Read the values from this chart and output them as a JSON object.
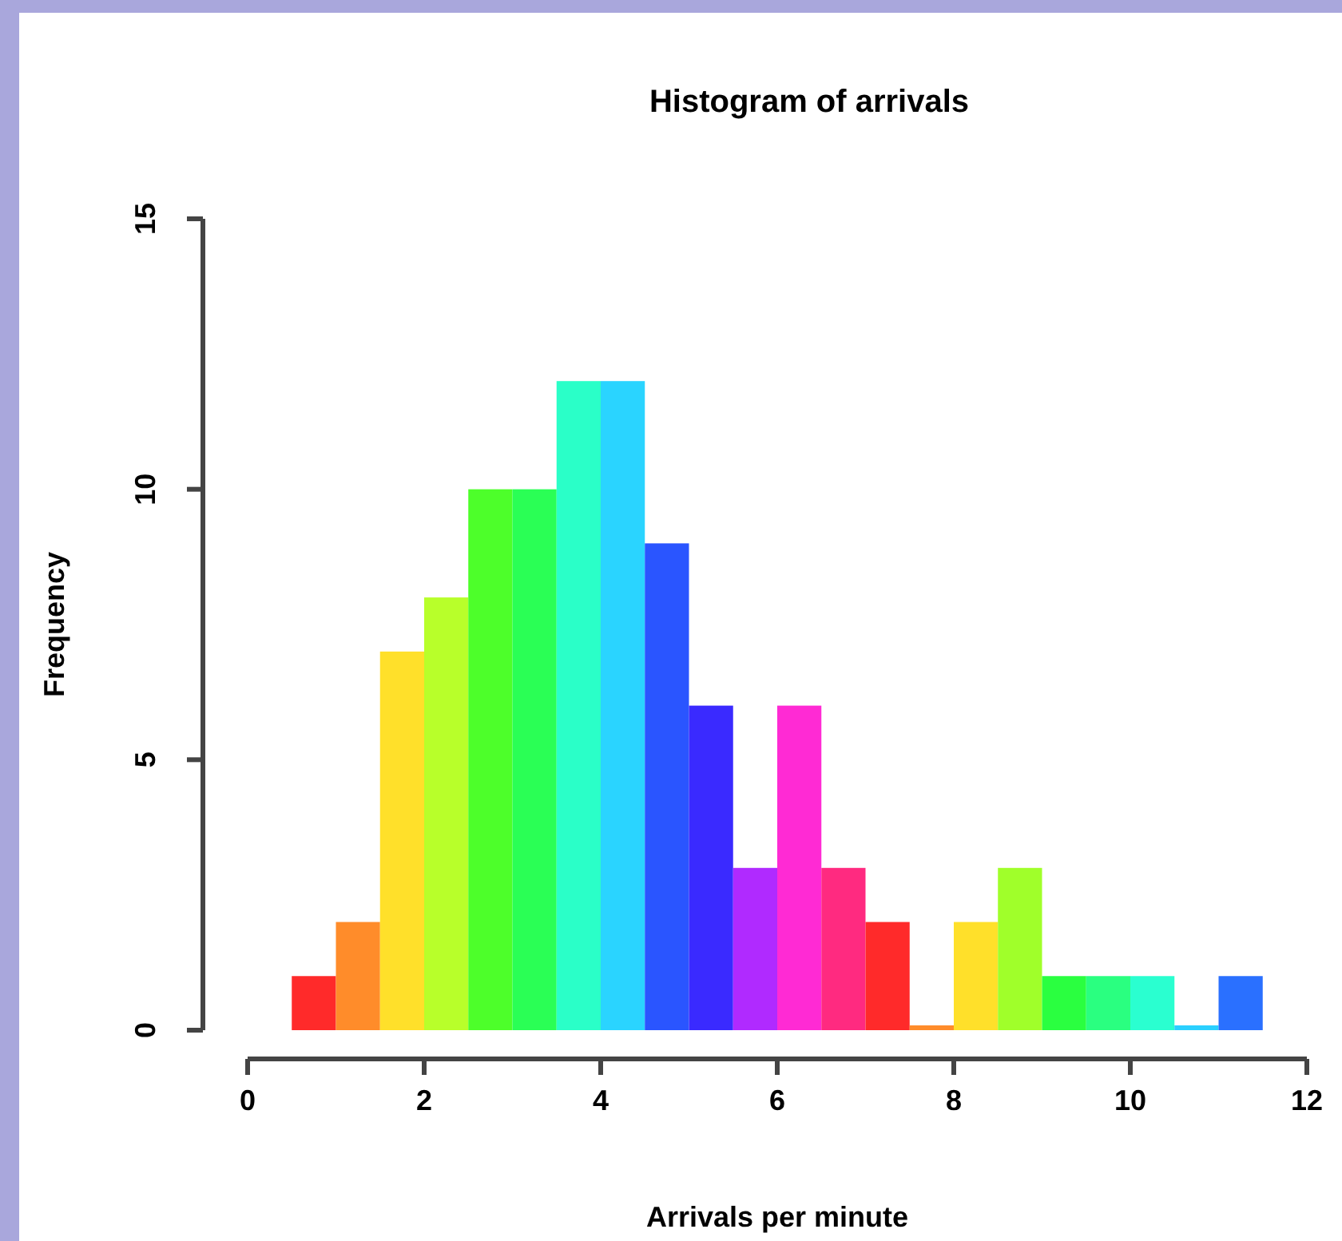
{
  "chart_data": {
    "type": "histogram",
    "title": "Histogram of arrivals",
    "xlabel": "Arrivals per minute",
    "ylabel": "Frequency",
    "bins": [
      0.5,
      1,
      1.5,
      2,
      2.5,
      3,
      3.5,
      4,
      4.5,
      5,
      5.5,
      6,
      6.5,
      7,
      7.5,
      8,
      8.5,
      9,
      9.5,
      10,
      10.5,
      11,
      11.5
    ],
    "values": [
      1,
      2,
      7,
      8,
      10,
      10,
      12,
      12,
      9,
      6,
      3,
      6,
      3,
      2,
      0,
      2,
      3,
      1,
      1,
      1,
      0,
      1
    ],
    "colors": [
      "#ff2a2a",
      "#ff8c2a",
      "#ffe02a",
      "#b8ff2a",
      "#4dff2a",
      "#2aff55",
      "#2affc8",
      "#2ad4ff",
      "#2a55ff",
      "#3a2aff",
      "#b02aff",
      "#ff2ad4",
      "#ff2a80",
      "#ff2a2a",
      "#ff8c2a",
      "#ffe02a",
      "#a0ff2a",
      "#2aff40",
      "#2aff80",
      "#2affd0",
      "#2ad0ff",
      "#2a70ff"
    ],
    "xlim": [
      0,
      12
    ],
    "xticks": [
      0,
      2,
      4,
      6,
      8,
      10,
      12
    ],
    "ylim": [
      0,
      15
    ],
    "yticks": [
      0,
      5,
      10,
      15
    ],
    "grid": false
  }
}
